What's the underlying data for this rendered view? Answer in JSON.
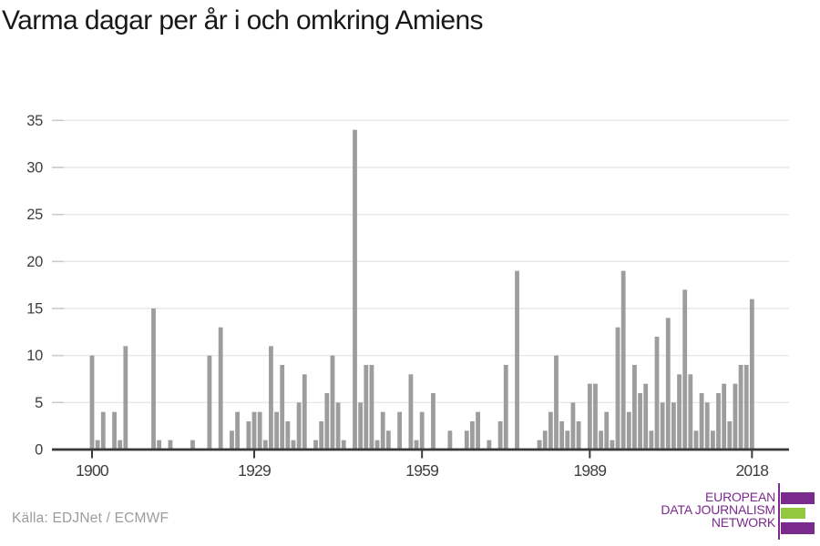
{
  "header": {
    "title": "Varma dagar per år i och omkring Amiens"
  },
  "chart_data": {
    "type": "bar",
    "title": "Varma dagar per år i och omkring Amiens",
    "xlabel": "",
    "ylabel": "",
    "x": {
      "start": 1900,
      "end": 2018,
      "step": 1
    },
    "values": [
      10,
      1,
      4,
      0,
      4,
      1,
      11,
      0,
      0,
      0,
      0,
      15,
      1,
      0,
      1,
      0,
      0,
      0,
      1,
      0,
      0,
      10,
      0,
      13,
      0,
      2,
      4,
      0,
      3,
      4,
      4,
      1,
      11,
      4,
      9,
      3,
      1,
      5,
      8,
      0,
      1,
      3,
      6,
      10,
      5,
      1,
      0,
      34,
      5,
      9,
      9,
      1,
      4,
      2,
      0,
      4,
      0,
      8,
      1,
      4,
      0,
      6,
      0,
      0,
      2,
      0,
      0,
      2,
      3,
      4,
      0,
      1,
      0,
      3,
      9,
      0,
      19,
      0,
      0,
      0,
      1,
      2,
      4,
      10,
      3,
      2,
      5,
      3,
      0,
      7,
      7,
      2,
      4,
      1,
      13,
      19,
      4,
      9,
      6,
      7,
      2,
      12,
      5,
      14,
      5,
      8,
      17,
      8,
      2,
      6,
      5,
      2,
      6,
      7,
      3,
      7,
      9,
      9,
      16
    ],
    "xticks": [
      1900,
      1929,
      1959,
      1989,
      2018
    ],
    "yticks": [
      0,
      5,
      10,
      15,
      20,
      25,
      30,
      35
    ],
    "ylim": [
      0,
      35
    ],
    "grid": "horizontal",
    "legend": "none",
    "bar_color": "#9d9d9d",
    "axis_color": "#3a3a3a",
    "gridline_color": "#e7e7e7",
    "tick_stub_color": "#cccccc",
    "tick_label_color": "#3f3f3f"
  },
  "footer": {
    "source_label": "Källa: EDJNet / ECMWF"
  },
  "logo": {
    "lines": [
      "EUROPEAN",
      "DATA JOURNALISM",
      "NETWORK"
    ],
    "purple": "#7b2a8e",
    "green": "#91c83e"
  }
}
